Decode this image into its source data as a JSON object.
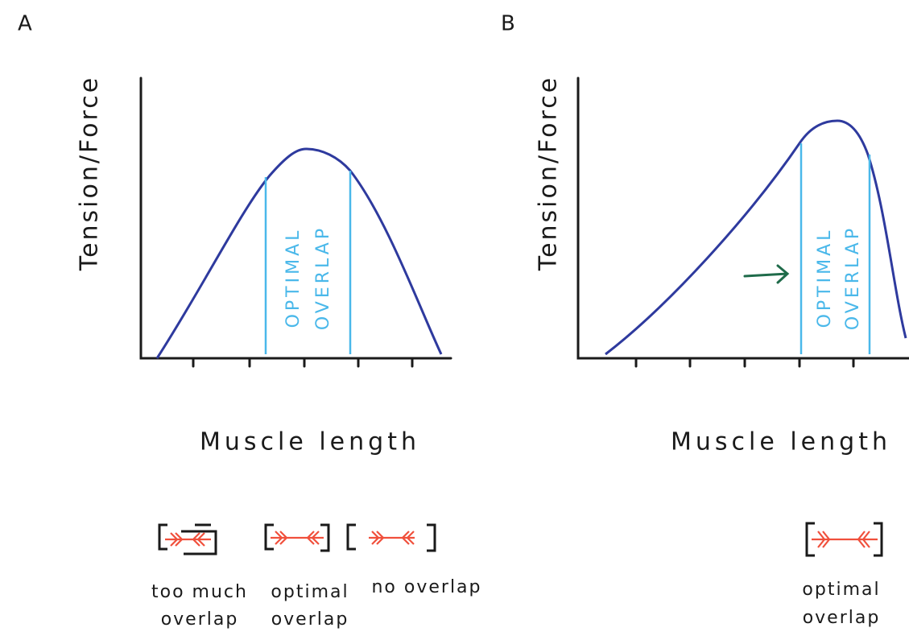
{
  "panels": [
    {
      "label": "A",
      "y_axis_label": "Tension/Force",
      "x_axis_label": "Muscle length",
      "band_label": [
        "OPTIMAL",
        "OVERLAP"
      ],
      "sarcomeres": [
        {
          "caption": [
            "too much",
            "overlap"
          ]
        },
        {
          "caption": [
            "optimal",
            "overlap"
          ]
        },
        {
          "caption": [
            "no overlap"
          ]
        }
      ]
    },
    {
      "label": "B",
      "y_axis_label": "Tension/Force",
      "x_axis_label": "Muscle length",
      "band_label": [
        "OPTIMAL",
        "OVERLAP"
      ],
      "sarcomeres": [
        {
          "caption": [
            "optimal",
            "overlap"
          ]
        }
      ]
    }
  ]
}
